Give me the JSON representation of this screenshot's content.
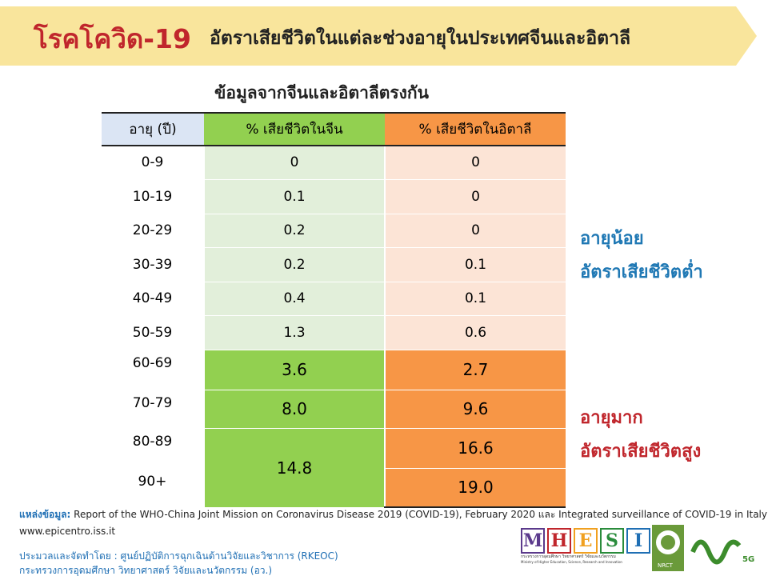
{
  "header": {
    "title": "โรคโควิด-19",
    "subtitle": "อัตราเสียชีวิตในแต่ละช่วงอายุในประเทศจีนและอิตาลี"
  },
  "table": {
    "caption": "ข้อมูลจากจีนและอิตาลีตรงกัน",
    "columns": [
      "อายุ (ปี)",
      "% เสียชีวิตในจีน",
      "% เสียชีวิตในอิตาลี"
    ],
    "rows": [
      [
        "0-9",
        "0",
        "0"
      ],
      [
        "10-19",
        "0.1",
        "0"
      ],
      [
        "20-29",
        "0.2",
        "0"
      ],
      [
        "30-39",
        "0.2",
        "0.1"
      ],
      [
        "40-49",
        "0.4",
        "0.1"
      ],
      [
        "50-59",
        "1.3",
        "0.6"
      ],
      [
        "60-69",
        "3.6",
        "2.7"
      ],
      [
        "70-79",
        "8.0",
        "9.6"
      ],
      [
        "80-89",
        "14.8",
        "16.6"
      ],
      [
        "90+",
        null,
        "19.0"
      ]
    ]
  },
  "notes": {
    "young": [
      "อายุน้อย",
      "อัตราเสียชีวิตต่ำ"
    ],
    "old": [
      "อายุมาก",
      "อัตราเสียชีวิตสูง"
    ]
  },
  "footer": {
    "source_label": "แหล่งข้อมูล:",
    "source": "Report of the WHO-China Joint Mission on Coronavirus Disease 2019 (COVID-19), February 2020 และ Integrated surveillance of COVID-19 in Italy,",
    "source_url": "www.epicentro.iss.it",
    "prepared": "ประมวลและจัดทำโดย : ศูนย์ปฏิบัติการฉุกเฉินด้านวิจัยและวิชาการ (RKEOC)",
    "ministry": "กระทรวงการอุดมศึกษา วิทยาศาสตร์ วิจัยและนวัตกรรม (อว.)"
  },
  "logos": {
    "mhesi": [
      "M",
      "H",
      "E",
      "S",
      "I"
    ],
    "mhesi_caption": "กระทรวงการอุดมศึกษา วิทยาศาสตร์ วิจัยและนวัตกรรม",
    "mhesi_caption_en": "Ministry of Higher Education, Science, Research and Innovation",
    "nrct": "NRCT",
    "fiveg": "5G"
  }
}
